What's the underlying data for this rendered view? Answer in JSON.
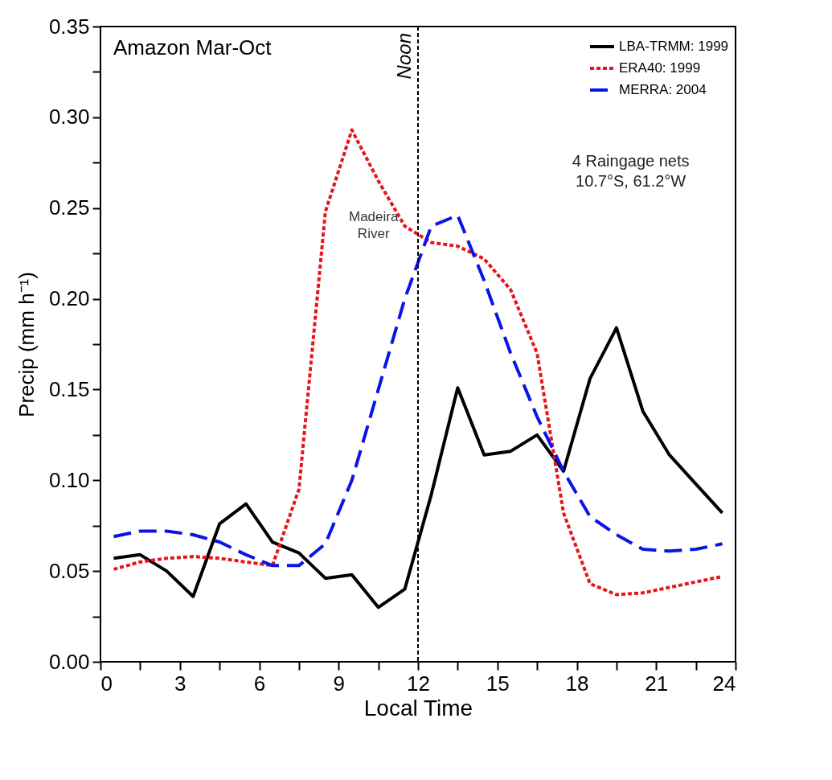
{
  "chart_data": {
    "type": "line",
    "xlabel": "Local Time",
    "ylabel": "Precip (mm h⁻¹)",
    "x": [
      0.5,
      1.5,
      2.5,
      3.5,
      4.5,
      5.5,
      6.5,
      7.5,
      8.5,
      9.5,
      10.5,
      11.5,
      12.5,
      13.5,
      14.5,
      15.5,
      16.5,
      17.5,
      18.5,
      19.5,
      20.5,
      21.5,
      22.5,
      23.5
    ],
    "series": [
      {
        "name": "LBA-TRMM: 1999",
        "color": "#000000",
        "line_style": "solid",
        "values": [
          0.057,
          0.059,
          0.05,
          0.036,
          0.076,
          0.087,
          0.066,
          0.06,
          0.046,
          0.048,
          0.03,
          0.04,
          0.092,
          0.151,
          0.114,
          0.116,
          0.125,
          0.105,
          0.156,
          0.184,
          0.138,
          0.114,
          0.098,
          0.082
        ]
      },
      {
        "name": "ERA40:  1999",
        "color": "#e8141b",
        "line_style": "dotted",
        "values": [
          0.051,
          0.055,
          0.057,
          0.058,
          0.057,
          0.055,
          0.053,
          0.095,
          0.248,
          0.293,
          0.265,
          0.24,
          0.231,
          0.229,
          0.222,
          0.205,
          0.17,
          0.082,
          0.043,
          0.037,
          0.038,
          0.041,
          0.044,
          0.047
        ]
      },
      {
        "name": "MERRA: 2004",
        "color": "#0a14e6",
        "line_style": "dashed",
        "values": [
          0.069,
          0.072,
          0.072,
          0.07,
          0.066,
          0.059,
          0.053,
          0.053,
          0.065,
          0.1,
          0.15,
          0.2,
          0.24,
          0.246,
          0.21,
          0.17,
          0.135,
          0.105,
          0.08,
          0.07,
          0.062,
          0.061,
          0.062,
          0.065
        ]
      }
    ],
    "xlim": [
      0,
      24
    ],
    "xticks": [
      0,
      {
        "value": 1.5,
        "label": null
      },
      3,
      {
        "value": 4.5,
        "label": null
      },
      6,
      {
        "value": 7.5,
        "label": null
      },
      9,
      {
        "value": 10.5,
        "label": null
      },
      12,
      {
        "value": 13.5,
        "label": null
      },
      15,
      {
        "value": 16.5,
        "label": null
      },
      18,
      {
        "value": 19.5,
        "label": null
      },
      21,
      {
        "value": 22.5,
        "label": null
      },
      24
    ],
    "ylim": [
      0,
      0.35
    ],
    "yticks": [
      {
        "value": 0,
        "label": "0.00"
      },
      {
        "value": 0.025,
        "label": null
      },
      {
        "value": 0.05,
        "label": "0.05"
      },
      {
        "value": 0.075,
        "label": null
      },
      {
        "value": 0.1,
        "label": "0.10"
      },
      {
        "value": 0.125,
        "label": null
      },
      {
        "value": 0.15,
        "label": "0.15"
      },
      {
        "value": 0.175,
        "label": null
      },
      {
        "value": 0.2,
        "label": "0.20"
      },
      {
        "value": 0.225,
        "label": null
      },
      {
        "value": 0.25,
        "label": "0.25"
      },
      {
        "value": 0.275,
        "label": null
      },
      {
        "value": 0.3,
        "label": "0.30"
      },
      {
        "value": 0.325,
        "label": null
      },
      {
        "value": 0.35,
        "label": "0.35"
      }
    ],
    "ref_lines": [
      {
        "axis": "x",
        "value": 12,
        "label": "Noon",
        "color": "#000000",
        "line_style": "dotted"
      }
    ],
    "annotations": [
      "Amazon Mar-Oct",
      "Madeira\nRiver",
      "4 Raingage nets\n10.7°S, 61.2°W"
    ],
    "grid": false,
    "legend": "top right"
  }
}
